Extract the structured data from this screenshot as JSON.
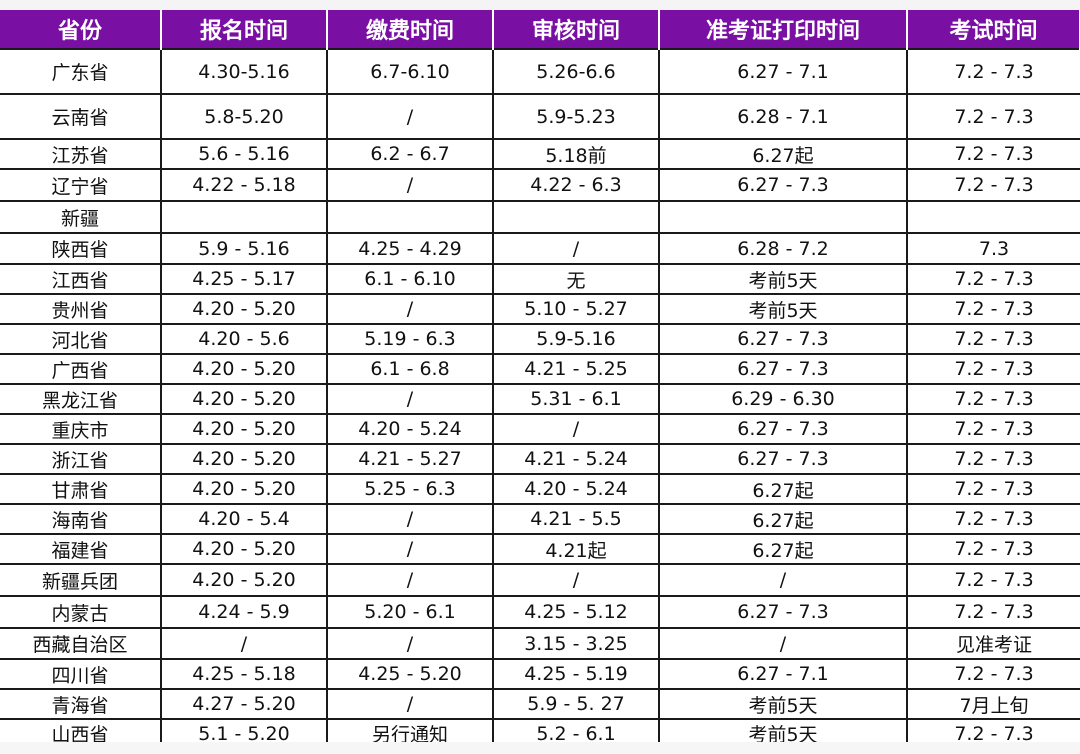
{
  "headers": [
    "省份",
    "报名时间",
    "缴费时间",
    "审核时间",
    "准考证打印时间",
    "考试时间"
  ],
  "rows": [
    [
      "广东省",
      "4.30-5.16",
      "6.7-6.10",
      "5.26-6.6",
      "6.27 - 7.1",
      "7.2 - 7.3"
    ],
    [
      "云南省",
      "5.8-5.20",
      "/",
      "5.9-5.23",
      "6.28 - 7.1",
      "7.2 - 7.3"
    ],
    [
      "江苏省",
      "5.6 - 5.16",
      "6.2 - 6.7",
      "5.18前",
      "6.27起",
      "7.2 - 7.3"
    ],
    [
      "辽宁省",
      "4.22 - 5.18",
      "/",
      "4.22 - 6.3",
      "6.27 - 7.3",
      "7.2 - 7.3"
    ],
    [
      "新疆",
      "",
      "",
      "",
      "",
      ""
    ],
    [
      "陕西省",
      "5.9 - 5.16",
      "4.25 - 4.29",
      "/",
      "6.28 - 7.2",
      "7.3"
    ],
    [
      "江西省",
      "4.25 - 5.17",
      "6.1 - 6.10",
      "无",
      "考前5天",
      "7.2 - 7.3"
    ],
    [
      "贵州省",
      "4.20 - 5.20",
      "/",
      "5.10 - 5.27",
      "考前5天",
      "7.2 - 7.3"
    ],
    [
      "河北省",
      "4.20 - 5.6",
      "5.19 -  6.3",
      "5.9-5.16",
      "6.27 - 7.3",
      "7.2 - 7.3"
    ],
    [
      "广西省",
      "4.20 - 5.20",
      "6.1 - 6.8",
      "4.21 - 5.25",
      "6.27 - 7.3",
      "7.2 - 7.3"
    ],
    [
      "黑龙江省",
      "4.20 - 5.20",
      "/",
      "5.31 - 6.1",
      "6.29 - 6.30",
      "7.2 - 7.3"
    ],
    [
      "重庆市",
      "4.20 - 5.20",
      "4.20 - 5.24",
      "/",
      "6.27 - 7.3",
      "7.2 - 7.3"
    ],
    [
      "浙江省",
      "4.20 - 5.20",
      "4.21 - 5.27",
      "4.21 - 5.24",
      "6.27 - 7.3",
      "7.2 - 7.3"
    ],
    [
      "甘肃省",
      "4.20 - 5.20",
      "5.25 - 6.3",
      "4.20 - 5.24",
      "6.27起",
      "7.2 - 7.3"
    ],
    [
      "海南省",
      "4.20 - 5.4",
      "/",
      "4.21 - 5.5",
      "6.27起",
      "7.2 - 7.3"
    ],
    [
      "福建省",
      "4.20 - 5.20",
      "/",
      "4.21起",
      "6.27起",
      "7.2 - 7.3"
    ],
    [
      "新疆兵团",
      "4.20 - 5.20",
      "/",
      "/",
      "/",
      "7.2 - 7.3"
    ],
    [
      "内蒙古",
      "4.24 - 5.9",
      "5.20 - 6.1",
      "4.25 - 5.12",
      "6.27 - 7.3",
      "7.2 - 7.3"
    ],
    [
      "西藏自治区",
      "/",
      "/",
      "3.15 - 3.25",
      "/",
      "见准考证"
    ],
    [
      "四川省",
      "4.25 - 5.18",
      "4.25 - 5.20",
      "4.25 - 5.19",
      "6.27 - 7.1",
      "7.2 - 7.3"
    ],
    [
      "青海省",
      "4.27 - 5.20",
      "/",
      "5.9 - 5. 27",
      "考前5天",
      "7月上旬"
    ],
    [
      "山西省",
      "5.1 - 5.20",
      "另行通知",
      "5.2 - 6.1",
      "考前5天",
      "7.2 - 7.3"
    ]
  ],
  "colors": {
    "header_bg": "#7a0fa3",
    "header_text": "#ffffff"
  }
}
